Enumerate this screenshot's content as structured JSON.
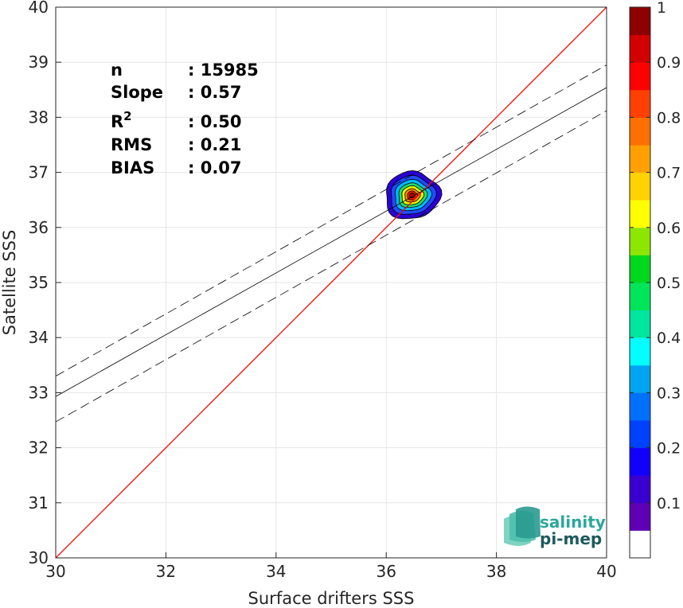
{
  "chart_data": {
    "type": "scatter",
    "subtype": "density-contour",
    "xlabel": "Surface drifters SSS",
    "ylabel": "Satellite SSS",
    "xlim": [
      30,
      40
    ],
    "ylim": [
      30,
      40
    ],
    "xticks": [
      "30",
      "32",
      "34",
      "36",
      "38",
      "40"
    ],
    "yticks": [
      "30",
      "31",
      "32",
      "33",
      "34",
      "35",
      "36",
      "37",
      "38",
      "39",
      "40"
    ],
    "grid": true,
    "stats": [
      {
        "label": "n",
        "value": ": 15985"
      },
      {
        "label": "Slope",
        "value": ": 0.57"
      },
      {
        "label": "R",
        "sup": "2",
        "value": ": 0.50"
      },
      {
        "label": "RMS",
        "value": ": 0.21"
      },
      {
        "label": "BIAS",
        "value": ": 0.07"
      }
    ],
    "identity_line": {
      "x": [
        30,
        40
      ],
      "y": [
        30,
        40
      ],
      "color": "#ff0000"
    },
    "regression_line": {
      "x": [
        30,
        40
      ],
      "y": [
        32.93,
        38.54
      ],
      "color": "#000000"
    },
    "confidence_upper": {
      "x": [
        30,
        40
      ],
      "y": [
        33.3,
        38.95
      ],
      "style": "dashed"
    },
    "confidence_lower": {
      "x": [
        30,
        40
      ],
      "y": [
        32.47,
        38.12
      ],
      "style": "dashed"
    },
    "density_center": {
      "x": 36.47,
      "y": 36.58
    },
    "density_levels": [
      {
        "level": 0.05,
        "rx": 0.5,
        "ry": 0.43,
        "color": "#2a00d4"
      },
      {
        "level": 0.15,
        "rx": 0.41,
        "ry": 0.35,
        "color": "#1f4cff"
      },
      {
        "level": 0.3,
        "rx": 0.33,
        "ry": 0.28,
        "color": "#00b8ff"
      },
      {
        "level": 0.45,
        "rx": 0.26,
        "ry": 0.22,
        "color": "#1fdf6c"
      },
      {
        "level": 0.6,
        "rx": 0.2,
        "ry": 0.17,
        "color": "#e7f500"
      },
      {
        "level": 0.75,
        "rx": 0.14,
        "ry": 0.12,
        "color": "#ff8a00"
      },
      {
        "level": 0.9,
        "rx": 0.09,
        "ry": 0.08,
        "color": "#ff1a00"
      },
      {
        "level": 1.0,
        "rx": 0.05,
        "ry": 0.045,
        "color": "#a50000"
      }
    ],
    "colorbar": {
      "range": [
        0,
        1
      ],
      "ticks": [
        "0.1",
        "0.2",
        "0.3",
        "0.4",
        "0.5",
        "0.6",
        "0.7",
        "0.8",
        "0.9",
        "1"
      ],
      "tick_values": [
        0.1,
        0.2,
        0.3,
        0.4,
        0.5,
        0.6,
        0.7,
        0.8,
        0.9,
        1.0
      ],
      "bottom_color": "#ffffff",
      "colors": [
        "#5e00b4",
        "#3a00cf",
        "#1200ff",
        "#0040ff",
        "#0070ff",
        "#00a4f0",
        "#00ffff",
        "#00e5a0",
        "#00e55a",
        "#00d81e",
        "#8ce600",
        "#ffff00",
        "#ffd200",
        "#ffa000",
        "#ff7000",
        "#ff4000",
        "#ff0000",
        "#d20000",
        "#8c0000"
      ]
    }
  },
  "logo": {
    "line1": "salinity",
    "line2": "pi-mep",
    "color1": "#2ca89a",
    "color2": "#1e5a5c"
  }
}
